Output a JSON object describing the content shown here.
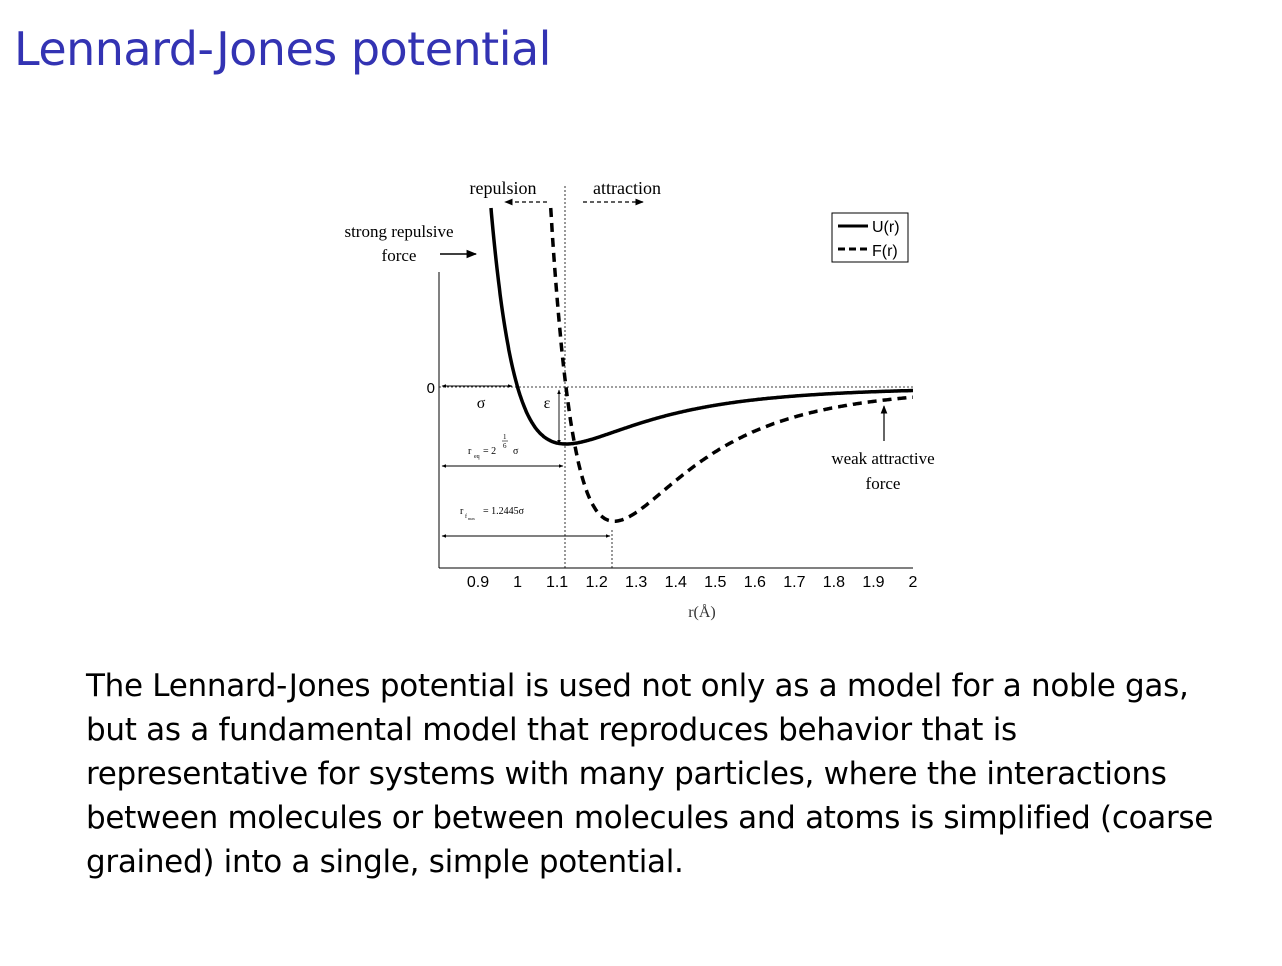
{
  "slide": {
    "title": "Lennard-Jones potential",
    "body_lines": [
      "The Lennard-Jones potential is used not only as a model for a noble gas,",
      "but as a fundamental model that reproduces behavior that is",
      "representative for systems with many particles, where the interactions",
      "between molecules or between molecules and atoms is simplified (coarse",
      "grained) into a single, simple potential."
    ]
  },
  "chart_data": {
    "type": "line",
    "xlabel": "r(Å)",
    "ylabel": "",
    "xlim": [
      0.86,
      2.0
    ],
    "xticks": [
      "0.9",
      "1",
      "1.1",
      "1.2",
      "1.3",
      "1.4",
      "1.5",
      "1.6",
      "1.7",
      "1.8",
      "1.9",
      "2"
    ],
    "yticks": [
      "0"
    ],
    "legend_placement": "top-right",
    "series": [
      {
        "name": "U(r)",
        "style": "solid",
        "color": "#000000",
        "formula": "4(r^-12 - r^-6)"
      },
      {
        "name": "F(r)",
        "style": "dashed",
        "color": "#000000",
        "formula": "48 r^-13 - 24 r^-7"
      }
    ],
    "annotations": {
      "repulsion": "repulsion",
      "attraction": "attraction",
      "strong_repulsive_1": "strong repulsive",
      "strong_repulsive_2": "force",
      "weak_attractive_1": "weak attractive",
      "weak_attractive_2": "force",
      "sigma": "σ",
      "epsilon": "ε",
      "req_r": "r",
      "req_sub": "eq",
      "req_eq": "= 2",
      "req_exp_num": "1",
      "req_exp_den": "6",
      "req_sigma": "σ",
      "rf_r": "r",
      "rf_sub": "f",
      "rf_subsub": "max",
      "rf_val": "= 1.2445σ"
    }
  }
}
